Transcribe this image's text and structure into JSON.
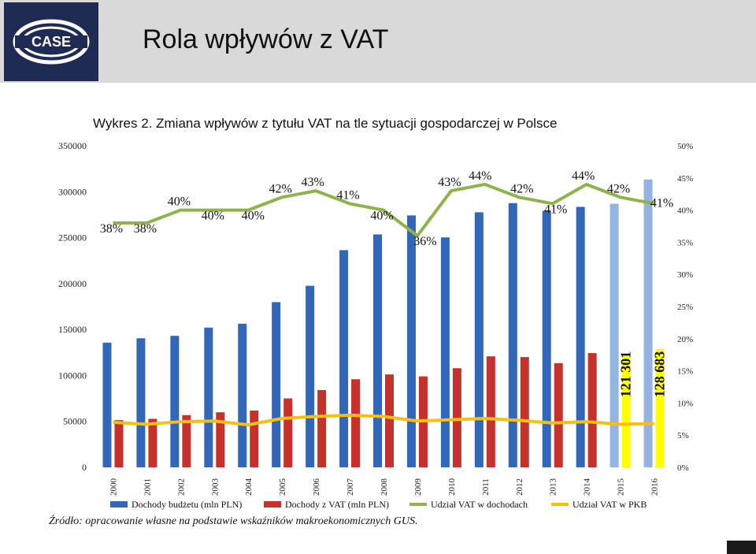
{
  "slide_title": "Rola wpływów z VAT",
  "logo": {
    "text": "CASE",
    "colors": {
      "bg": "#1f2b52",
      "fg": "#ffffff"
    }
  },
  "source_note": "Źródło: opracowanie własne na podstawie wskaźników makroekonomicznych GUS.",
  "colors": {
    "income_blue": "#3166b8",
    "income_blue_forecast": "#93b3e0",
    "vat_red": "#c7312c",
    "vat_yellow_forecast": "#ffff00",
    "share_income_green": "#8fb24a",
    "share_gdp_yellow": "#f5bf15",
    "header_band": "#d9d9d9"
  },
  "chart_data": {
    "type": "bar",
    "title": "Wykres 2. Zmiana wpływów z tytułu VAT na tle sytuacji gospodarczej w Polsce",
    "categories": [
      "2000",
      "2001",
      "2002",
      "2003",
      "2004",
      "2005",
      "2006",
      "2007",
      "2008",
      "2009",
      "2010",
      "2011",
      "2012",
      "2013",
      "2014",
      "2015",
      "2016"
    ],
    "ylim_left": [
      0,
      350000
    ],
    "yticks_left": [
      "0",
      "50000",
      "100000",
      "150000",
      "200000",
      "250000",
      "300000",
      "350000"
    ],
    "ylim_right": [
      0,
      50
    ],
    "yticks_right": [
      "0%",
      "5%",
      "10%",
      "15%",
      "20%",
      "25%",
      "30%",
      "35%",
      "40%",
      "45%",
      "50%"
    ],
    "series": [
      {
        "name": "Dochody budżetu (mln PLN)",
        "type": "bar",
        "axis": "left",
        "values": [
          135700,
          140500,
          143100,
          152100,
          156300,
          179800,
          197600,
          236400,
          253500,
          274200,
          250300,
          277600,
          287600,
          279200,
          283500,
          286900,
          313400
        ]
      },
      {
        "name": "Dochody z VAT (mln PLN)",
        "type": "bar",
        "axis": "left",
        "values": [
          51400,
          52800,
          56800,
          59900,
          61800,
          75000,
          84100,
          95900,
          101100,
          99000,
          107900,
          120800,
          120000,
          113400,
          124300,
          121301,
          128683
        ]
      },
      {
        "name": "Udział VAT w dochodach",
        "type": "line",
        "axis": "right",
        "values": [
          38,
          38,
          40,
          40,
          40,
          42,
          43,
          41,
          40,
          36,
          43,
          44,
          42,
          41,
          44,
          42,
          41
        ],
        "labels": [
          "38%",
          "38%",
          "40%",
          "40%",
          "40%",
          "42%",
          "43%",
          "41%",
          "40%",
          "36%",
          "43%",
          "44%",
          "42%",
          "41%",
          "44%",
          "42%",
          "41%"
        ]
      },
      {
        "name": "Udział VAT w PKB",
        "type": "line",
        "axis": "right",
        "values": [
          7.0,
          6.7,
          7.1,
          7.2,
          6.6,
          7.6,
          7.9,
          8.1,
          7.9,
          7.2,
          7.4,
          7.6,
          7.3,
          6.9,
          7.1,
          6.7,
          6.8
        ]
      }
    ],
    "forecast_bar_labels": [
      "121 301",
      "128 683"
    ],
    "legend_position": "bottom",
    "grid": false
  }
}
